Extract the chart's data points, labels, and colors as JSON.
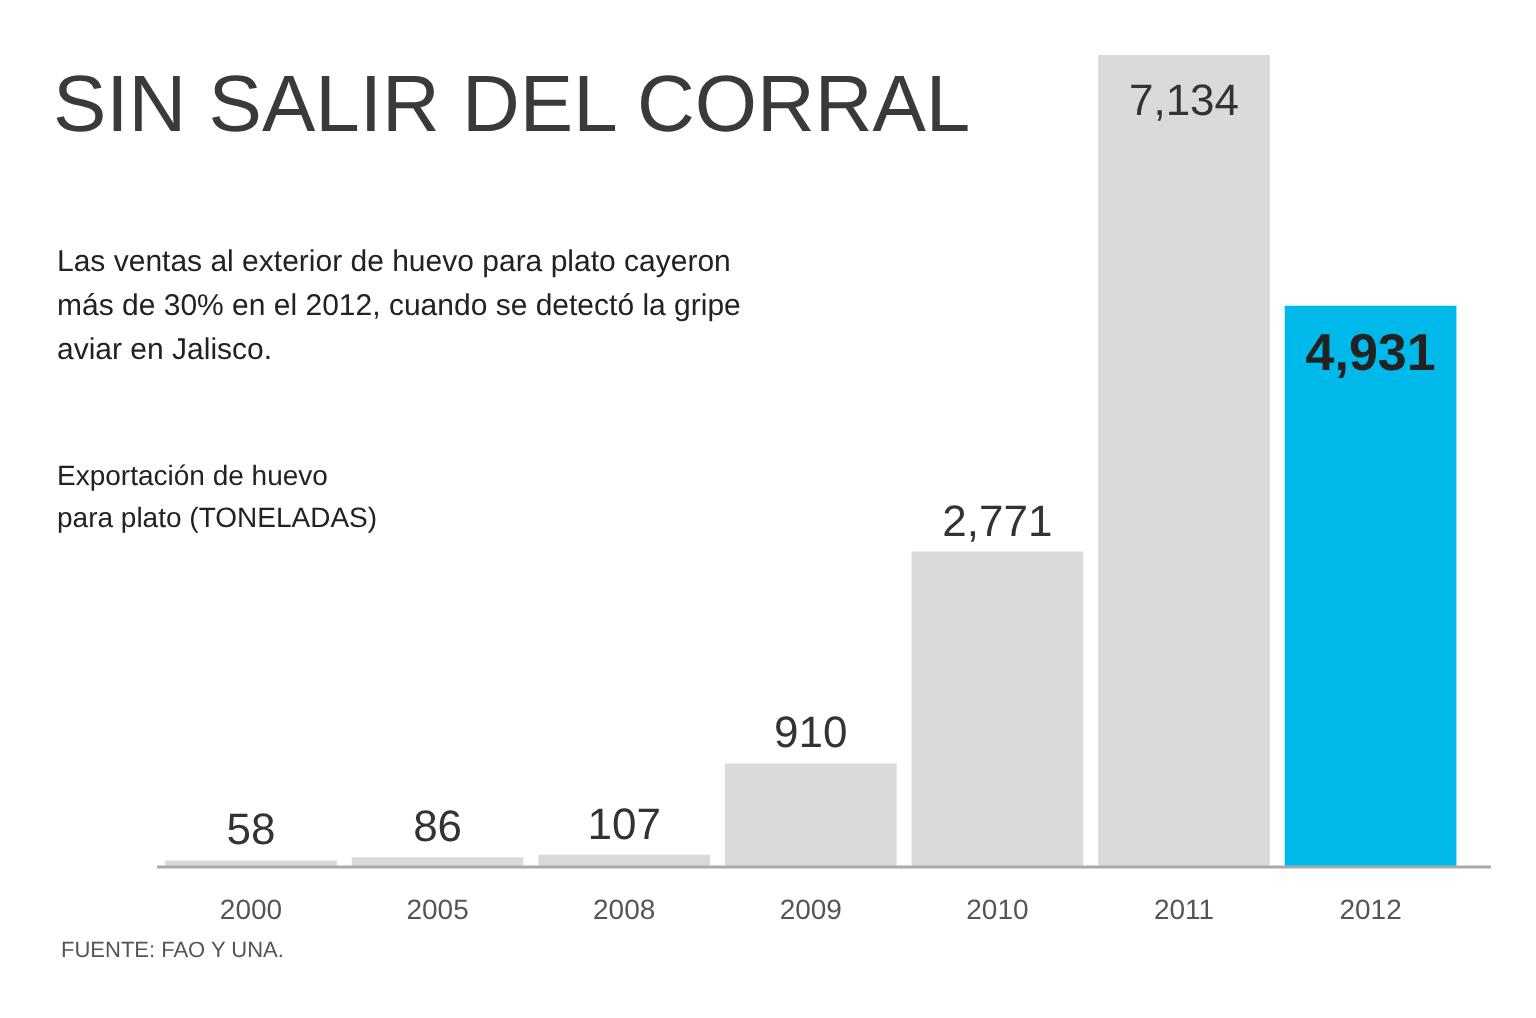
{
  "chart_data": {
    "type": "bar",
    "title": "SIN SALIR DEL CORRAL",
    "subtitle": "Las ventas al exterior de huevo para plato cayeron más de 30% en el 2012, cuando se detectó la gripe aviar en Jalisco.",
    "ylabel": "Exportación de huevo para plato (TONELADAS)",
    "categories": [
      "2000",
      "2005",
      "2008",
      "2009",
      "2010",
      "2011",
      "2012"
    ],
    "values": [
      58,
      86,
      107,
      910,
      2771,
      7134,
      4931
    ],
    "value_labels": [
      "58",
      "86",
      "107",
      "910",
      "2,771",
      "7,134",
      "4,931"
    ],
    "colors": [
      "#d9dadb",
      "#d9dadb",
      "#d9dadb",
      "#d9dadb",
      "#d9dadb",
      "#d9dadb",
      "#00b9eb"
    ],
    "annotations": [
      "FUENTE: FAO Y UNA."
    ]
  }
}
